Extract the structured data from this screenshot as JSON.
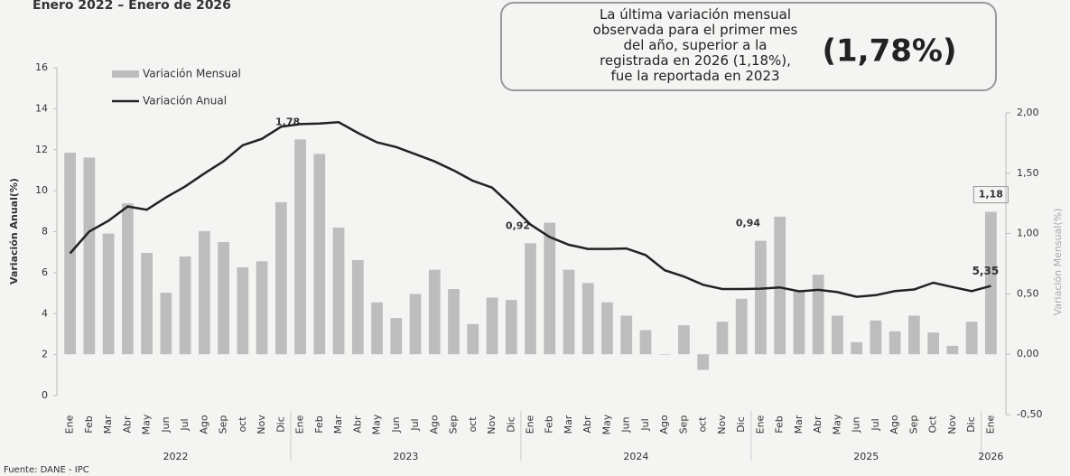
{
  "chart_data": {
    "type": "bar_line",
    "title": "Enero 2022 – Enero de 2026",
    "annotation": "La última variación mensual observada para el primer mes del año, superior a la registrada en 2026 (1,18%), fue la reportada en 2023",
    "annotation_highlight": "(1,78%)",
    "ylabel": "Variación Anual(%)",
    "y2label": "Variación Mensual(%)",
    "source": "Fuente: DANE - IPC",
    "categories": [
      "Ene",
      "Feb",
      "Mar",
      "Abr",
      "May",
      "Jun",
      "Jul",
      "Ago",
      "Sep",
      "oct",
      "Nov",
      "Dic",
      "Ene",
      "Feb",
      "Mar",
      "Abr",
      "May",
      "Jun",
      "Jul",
      "Ago",
      "Sep",
      "oct",
      "Nov",
      "Dic",
      "Ene",
      "Feb",
      "Mar",
      "Abr",
      "May",
      "Jun",
      "Jul",
      "Ago",
      "Sep",
      "oct",
      "Nov",
      "Dic",
      "Ene",
      "Feb",
      "Mar",
      "Abr",
      "May",
      "Jun",
      "Jul",
      "Ago",
      "Sep",
      "Oct",
      "Nov",
      "Dic",
      "Ene"
    ],
    "years": [
      "2022",
      "2023",
      "2024",
      "2025",
      "2026"
    ],
    "series": [
      {
        "name": "Variación Mensual",
        "color": "#bdbdbd",
        "axis": "y2",
        "kind": "bar",
        "values": [
          1.67,
          1.63,
          1.0,
          1.25,
          0.84,
          0.51,
          0.81,
          1.02,
          0.93,
          0.72,
          0.77,
          1.26,
          1.78,
          1.66,
          1.05,
          0.78,
          0.43,
          0.3,
          0.5,
          0.7,
          0.54,
          0.25,
          0.47,
          0.45,
          0.92,
          1.09,
          0.7,
          0.59,
          0.43,
          0.32,
          0.2,
          0.0,
          0.24,
          -0.13,
          0.27,
          0.46,
          0.94,
          1.14,
          0.52,
          0.66,
          0.32,
          0.1,
          0.28,
          0.19,
          0.32,
          0.18,
          0.07,
          0.27,
          1.18
        ],
        "value_labels": [
          null,
          null,
          null,
          null,
          null,
          null,
          null,
          null,
          null,
          null,
          null,
          null,
          "1,78",
          null,
          null,
          null,
          null,
          null,
          null,
          null,
          null,
          null,
          null,
          null,
          "0,92",
          null,
          null,
          null,
          null,
          null,
          null,
          null,
          null,
          null,
          null,
          null,
          "0,94",
          null,
          null,
          null,
          null,
          null,
          null,
          null,
          null,
          null,
          null,
          null,
          "1,18"
        ]
      },
      {
        "name": "Variación Anual",
        "color": "#222222",
        "axis": "y",
        "kind": "line",
        "values": [
          6.94,
          8.01,
          8.53,
          9.23,
          9.07,
          9.67,
          10.21,
          10.84,
          11.44,
          12.22,
          12.53,
          13.12,
          13.25,
          13.28,
          13.34,
          12.82,
          12.36,
          12.13,
          11.78,
          11.43,
          10.99,
          10.48,
          10.15,
          9.28,
          8.35,
          7.74,
          7.36,
          7.16,
          7.16,
          7.18,
          6.86,
          6.12,
          5.81,
          5.41,
          5.2,
          5.2,
          5.22,
          5.28,
          5.09,
          5.16,
          5.05,
          4.82,
          4.9,
          5.1,
          5.18,
          5.51,
          5.3,
          5.1,
          5.35
        ],
        "value_labels": [
          null,
          null,
          null,
          null,
          null,
          null,
          null,
          null,
          null,
          null,
          null,
          null,
          null,
          null,
          null,
          null,
          null,
          null,
          null,
          null,
          null,
          null,
          null,
          null,
          null,
          null,
          null,
          null,
          null,
          null,
          null,
          null,
          null,
          null,
          null,
          null,
          null,
          null,
          null,
          null,
          null,
          null,
          null,
          null,
          null,
          null,
          null,
          null,
          "5,35"
        ]
      }
    ],
    "ylim": [
      0,
      16
    ],
    "yticks": [
      0,
      2,
      4,
      6,
      8,
      10,
      12,
      14,
      16
    ],
    "y2lim": [
      -0.5,
      2.0
    ],
    "y2ticks": [
      {
        "value": -0.5,
        "label": "-0,50"
      },
      {
        "value": 0,
        "label": "0,00"
      },
      {
        "value": 0.5,
        "label": "0,50"
      },
      {
        "value": 1.0,
        "label": "1,00"
      },
      {
        "value": 1.5,
        "label": "1,50"
      },
      {
        "value": 2.0,
        "label": "2,00"
      }
    ],
    "legend": "top-left"
  }
}
